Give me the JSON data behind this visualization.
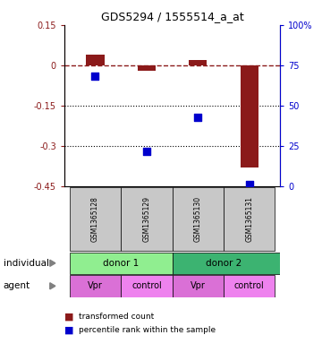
{
  "title": "GDS5294 / 1555514_a_at",
  "samples": [
    "GSM1365128",
    "GSM1365129",
    "GSM1365130",
    "GSM1365131"
  ],
  "bar_values": [
    0.04,
    -0.02,
    0.02,
    -0.38
  ],
  "percentile_values": [
    68,
    22,
    43,
    1
  ],
  "bar_color": "#8B1A1A",
  "dot_color": "#0000CD",
  "ylim_left": [
    -0.45,
    0.15
  ],
  "ylim_right": [
    0,
    100
  ],
  "yticks_left": [
    0.15,
    0.0,
    -0.15,
    -0.3,
    -0.45
  ],
  "ytick_labels_left": [
    "0.15",
    "0",
    "-0.15",
    "-0.3",
    "-0.45"
  ],
  "yticks_right": [
    100,
    75,
    50,
    25,
    0
  ],
  "ytick_labels_right": [
    "100%",
    "75",
    "50",
    "25",
    "0"
  ],
  "dotted_lines": [
    -0.15,
    -0.3
  ],
  "sample_bg": "#C8C8C8",
  "individual_color1": "#90EE90",
  "individual_color2": "#3CB371",
  "agent_colors": [
    "#DA70D6",
    "#EE82EE",
    "#DA70D6",
    "#EE82EE"
  ],
  "agent_labels": [
    "Vpr",
    "control",
    "Vpr",
    "control"
  ],
  "legend_bar_label": "transformed count",
  "legend_dot_label": "percentile rank within the sample",
  "bar_width": 0.35,
  "x_positions": [
    0,
    1,
    2,
    3
  ]
}
